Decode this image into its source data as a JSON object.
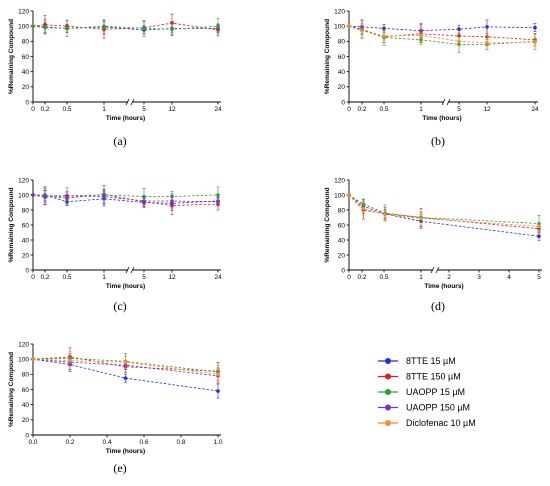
{
  "legend": [
    {
      "name": "8TTE 15 µM",
      "color": "#1f2ee6"
    },
    {
      "name": "8TTE 150 µM",
      "color": "#e31a1c"
    },
    {
      "name": "UAOPP 15 µM",
      "color": "#2ca02c"
    },
    {
      "name": "UAOPP 150 µM",
      "color": "#7b2fd0"
    },
    {
      "name": "Diclofenac 10 µM",
      "color": "#f28e2b"
    }
  ],
  "chart_data": [
    {
      "panel": "(a)",
      "type": "line",
      "xlabel": "Time (hours)",
      "ylabel": "%Remaining Compound",
      "x_ticks": [
        "0",
        "0.2",
        "0.5",
        "1",
        "5",
        "12",
        "24"
      ],
      "x": [
        "0",
        "0.2",
        "0.5",
        "1",
        "5",
        "12",
        "24"
      ],
      "ylim": [
        0,
        120
      ],
      "y_ticks": [
        0,
        20,
        40,
        60,
        80,
        100,
        120
      ],
      "series": [
        {
          "name": "8TTE 15 µM",
          "values": [
            100,
            99,
            97,
            99,
            95,
            97,
            97
          ]
        },
        {
          "name": "8TTE 150 µM",
          "values": [
            100,
            102,
            100,
            96,
            98,
            104,
            95
          ]
        },
        {
          "name": "UAOPP 15 µM",
          "values": [
            100,
            98,
            97,
            100,
            97,
            96,
            100
          ]
        }
      ]
    },
    {
      "panel": "(b)",
      "type": "line",
      "xlabel": "Time (hours)",
      "ylabel": "%Remaining Compound",
      "x_ticks": [
        "0",
        "0.2",
        "0.5",
        "1",
        "5",
        "12",
        "24"
      ],
      "x": [
        "0",
        "0.2",
        "0.5",
        "1",
        "5",
        "12",
        "24"
      ],
      "ylim": [
        0,
        120
      ],
      "y_ticks": [
        0,
        20,
        40,
        60,
        80,
        100,
        120
      ],
      "series": [
        {
          "name": "8TTE 15 µM",
          "values": [
            100,
            99,
            97,
            94,
            96,
            99,
            98
          ]
        },
        {
          "name": "8TTE 150 µM",
          "values": [
            100,
            96,
            86,
            90,
            87,
            86,
            82
          ]
        },
        {
          "name": "UAOPP 15 µM",
          "values": [
            100,
            95,
            85,
            82,
            76,
            76,
            80
          ]
        },
        {
          "name": "Diclofenac 10 µM",
          "values": [
            100,
            94,
            87,
            88,
            80,
            78,
            79
          ]
        }
      ]
    },
    {
      "panel": "(c)",
      "type": "line",
      "xlabel": "Time (hours)",
      "ylabel": "%Remaining Compound",
      "x_ticks": [
        "0",
        "0.2",
        "0.5",
        "1",
        "5",
        "12",
        "24"
      ],
      "x": [
        "0",
        "0.2",
        "0.5",
        "1",
        "5",
        "12",
        "24"
      ],
      "ylim": [
        0,
        120
      ],
      "y_ticks": [
        0,
        20,
        40,
        60,
        80,
        100,
        120
      ],
      "series": [
        {
          "name": "8TTE 15 µM",
          "values": [
            100,
            100,
            91,
            95,
            90,
            89,
            92
          ]
        },
        {
          "name": "8TTE 150 µM",
          "values": [
            100,
            99,
            96,
            101,
            91,
            86,
            88
          ]
        },
        {
          "name": "UAOPP 15 µM",
          "values": [
            100,
            99,
            99,
            100,
            98,
            98,
            100
          ]
        },
        {
          "name": "UAOPP 150 µM",
          "values": [
            100,
            97,
            99,
            98,
            92,
            92,
            91
          ]
        }
      ]
    },
    {
      "panel": "(d)",
      "type": "line",
      "xlabel": "Time (hours)",
      "ylabel": "%Remaining Compound",
      "x_ticks": [
        "0",
        "0.2",
        "0.5",
        "1",
        "2",
        "3",
        "4",
        "5"
      ],
      "x": [
        0,
        0.2,
        0.5,
        1,
        5
      ],
      "ylim": [
        0,
        120
      ],
      "y_ticks": [
        0,
        20,
        40,
        60,
        80,
        100,
        120
      ],
      "series": [
        {
          "name": "8TTE 15 µM",
          "values": [
            100,
            85,
            75,
            65,
            45
          ]
        },
        {
          "name": "8TTE 150 µM",
          "values": [
            100,
            80,
            75,
            70,
            55
          ]
        },
        {
          "name": "UAOPP 15 µM",
          "values": [
            100,
            88,
            76,
            70,
            62
          ]
        },
        {
          "name": "Diclofenac 10 µM",
          "values": [
            100,
            82,
            74,
            69,
            58
          ]
        }
      ]
    },
    {
      "panel": "(e)",
      "type": "line",
      "xlabel": "Time (hours)",
      "ylabel": "%Remaining Compound",
      "x_ticks": [
        "0.0",
        "0.2",
        "0.4",
        "0.6",
        "0.8",
        "1.0"
      ],
      "x": [
        0,
        0.2,
        0.5,
        1.0
      ],
      "ylim": [
        0,
        120
      ],
      "y_ticks": [
        0,
        20,
        40,
        60,
        80,
        100,
        120
      ],
      "series": [
        {
          "name": "8TTE 15 µM",
          "values": [
            100,
            93,
            75,
            58
          ]
        },
        {
          "name": "8TTE 150 µM",
          "values": [
            100,
            103,
            90,
            84
          ]
        },
        {
          "name": "UAOPP 15 µM",
          "values": [
            100,
            101,
            97,
            83
          ]
        },
        {
          "name": "UAOPP 150 µM",
          "values": [
            100,
            96,
            92,
            78
          ]
        },
        {
          "name": "Diclofenac 10 µM",
          "values": [
            100,
            98,
            96,
            80
          ]
        }
      ]
    }
  ]
}
